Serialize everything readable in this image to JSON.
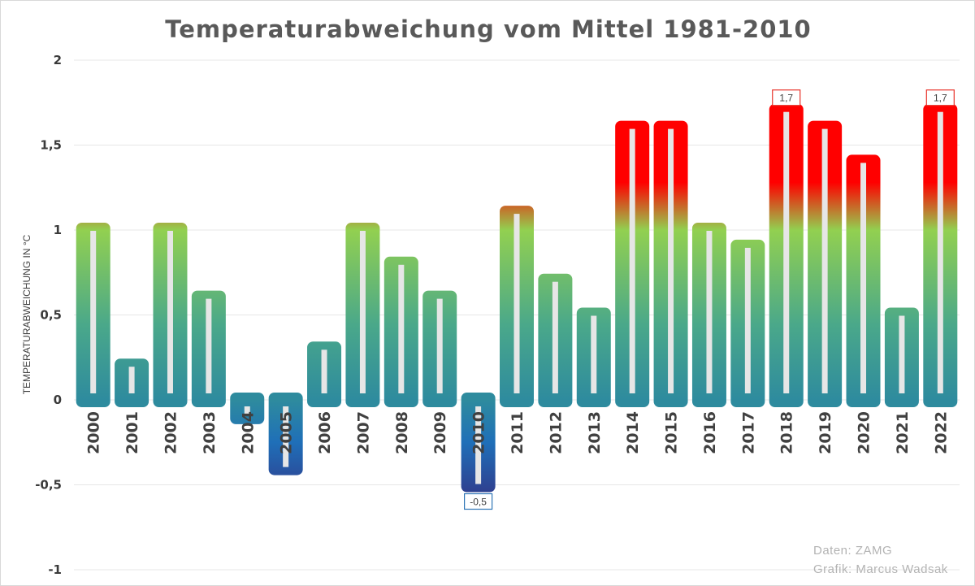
{
  "chart_data": {
    "type": "bar",
    "title": "Temperaturabweichung vom Mittel 1981-2010",
    "ylabel": "TEMPERATURABWEICHUNG IN °C",
    "xlabel": "",
    "ylim": [
      -1,
      2
    ],
    "yticks": [
      {
        "value": 2,
        "label": "2"
      },
      {
        "value": 1.5,
        "label": "1,5"
      },
      {
        "value": 1,
        "label": "1"
      },
      {
        "value": 0.5,
        "label": "0,5"
      },
      {
        "value": 0,
        "label": "0"
      },
      {
        "value": -0.5,
        "label": "-0,5"
      },
      {
        "value": -1,
        "label": "-1"
      }
    ],
    "grid": true,
    "categories": [
      "2000",
      "2001",
      "2002",
      "2003",
      "2004",
      "2005",
      "2006",
      "2007",
      "2008",
      "2009",
      "2010",
      "2011",
      "2012",
      "2013",
      "2014",
      "2015",
      "2016",
      "2017",
      "2018",
      "2019",
      "2020",
      "2021",
      "2022"
    ],
    "values": [
      1.0,
      0.2,
      1.0,
      0.6,
      -0.1,
      -0.4,
      0.3,
      1.0,
      0.8,
      0.6,
      -0.5,
      1.1,
      0.7,
      0.5,
      1.6,
      1.6,
      1.0,
      0.9,
      1.7,
      1.6,
      1.4,
      0.5,
      1.7
    ],
    "data_labels": [
      {
        "category": "2010",
        "label": "-0,5"
      },
      {
        "category": "2018",
        "label": "1,7"
      },
      {
        "category": "2022",
        "label": "1,7"
      }
    ],
    "colors": {
      "hot": "#ff0000",
      "warm": "#92d050",
      "mild": "#4aa88a",
      "neutral": "#2e8b9e",
      "cold": "#1f6fb8",
      "very_cold": "#2f3f8f",
      "inner_bar": "#e6e6e6",
      "grid": "#e7e7e7",
      "label_box_hot": "#e8332a",
      "label_box_cold": "#2e75b6"
    }
  },
  "credits": {
    "source": "Daten: ZAMG",
    "author": "Grafik: Marcus Wadsak"
  }
}
